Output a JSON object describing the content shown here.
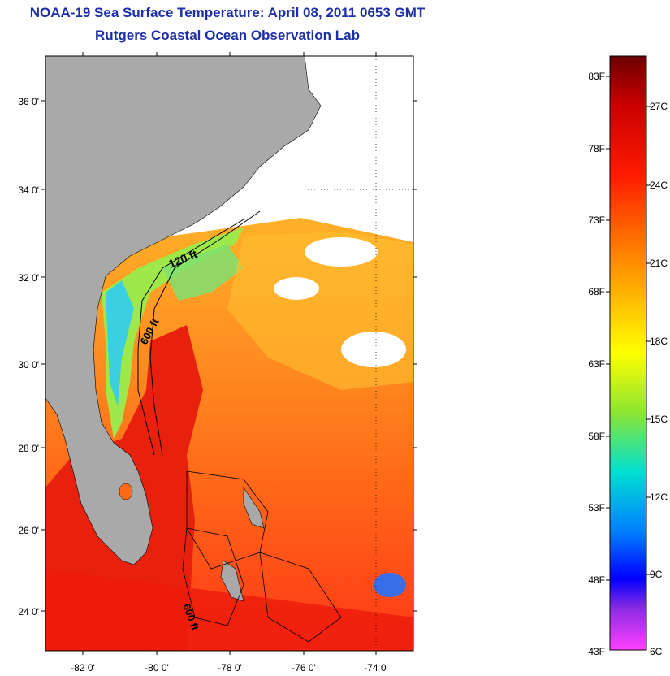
{
  "title": {
    "line1": "NOAA-19 Sea Surface Temperature:  April 08, 2011 0653 GMT",
    "line2": "Rutgers Coastal Ocean Observation Lab"
  },
  "map": {
    "lat_labels": [
      "36 0'",
      "34 0'",
      "32 0'",
      "30 0'",
      "28 0'",
      "26 0'",
      "24 0'"
    ],
    "lon_labels": [
      "-82 0'",
      "-80 0'",
      "-78 0'",
      "-76 0'",
      "-74 0'"
    ],
    "isobath_labels": [
      "120 ft",
      "600 ft",
      "600 ft"
    ],
    "colors": {
      "land": "#a9a9a9",
      "cloud": "#ffffff",
      "warm": "#ff3b1a",
      "hot": "#e8140c",
      "orange": "#ff7a1a",
      "mid": "#ffb028",
      "cool": "#a6f04a",
      "cold": "#22d3e8"
    }
  },
  "colorbar": {
    "f_labels": [
      "83F",
      "78F",
      "73F",
      "68F",
      "63F",
      "58F",
      "53F",
      "48F",
      "43F"
    ],
    "c_labels": [
      "27C",
      "24C",
      "21C",
      "18C",
      "15C",
      "12C",
      "9C",
      "6C"
    ]
  }
}
